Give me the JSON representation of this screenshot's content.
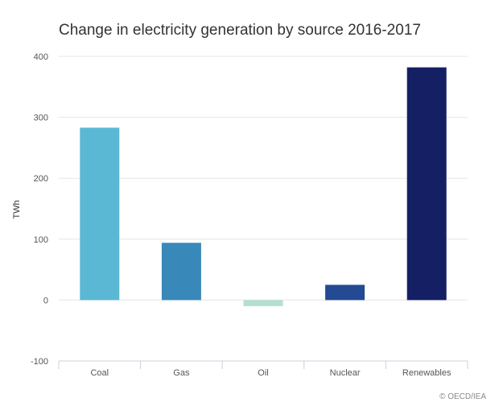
{
  "chart_data": {
    "type": "bar",
    "title": "Change in electricity generation by source 2016-2017",
    "ylabel": "TWh",
    "xlabel": "",
    "categories": [
      "Coal",
      "Gas",
      "Oil",
      "Nuclear",
      "Renewables"
    ],
    "values": [
      283,
      94,
      -10,
      25,
      382
    ],
    "colors": [
      "#5bb8d4",
      "#3888b9",
      "#b3dfcf",
      "#234a93",
      "#151f63"
    ],
    "ylim": [
      -100,
      400
    ],
    "yticks": [
      -100,
      0,
      100,
      200,
      300,
      400
    ],
    "grid": true,
    "legend": "none"
  },
  "credit": "© OECD/IEA"
}
